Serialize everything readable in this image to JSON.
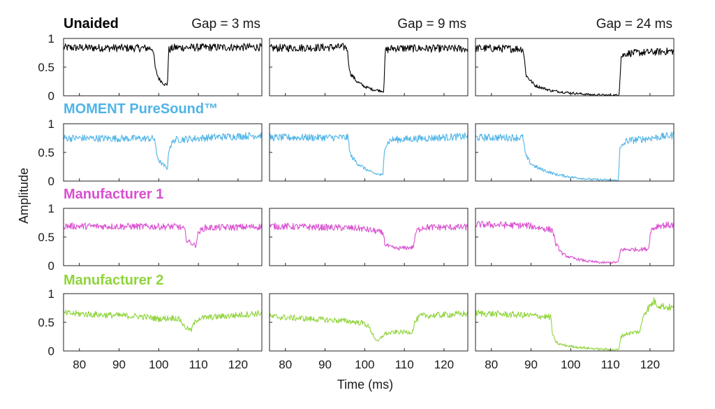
{
  "chart_data": {
    "type": "line",
    "xlabel": "Time (ms)",
    "ylabel": "Amplitude",
    "xlim": [
      76,
      126
    ],
    "ylim": [
      0,
      1
    ],
    "x_ticks": [
      80,
      90,
      100,
      110,
      120
    ],
    "y_ticks": [
      0,
      0.5,
      1
    ],
    "y_tick_labels": [
      "0",
      "0.5",
      "1"
    ],
    "columns": [
      {
        "gap_label": "Gap = 3 ms",
        "gap_ms": 3
      },
      {
        "gap_label": "Gap = 9 ms",
        "gap_ms": 9
      },
      {
        "gap_label": "Gap = 24 ms",
        "gap_ms": 24
      }
    ],
    "rows": [
      {
        "name": "Unaided",
        "color": "#000000",
        "series": [
          {
            "points": [
              [
                76,
                0.84
              ],
              [
                98.5,
                0.83
              ],
              [
                99.2,
                0.45
              ],
              [
                100,
                0.3
              ],
              [
                101.5,
                0.2
              ],
              [
                102.2,
                0.19
              ],
              [
                102.5,
                0.8
              ],
              [
                104,
                0.84
              ],
              [
                126,
                0.85
              ]
            ]
          },
          {
            "points": [
              [
                76,
                0.83
              ],
              [
                95.5,
                0.85
              ],
              [
                96.3,
                0.4
              ],
              [
                98,
                0.25
              ],
              [
                100,
                0.16
              ],
              [
                102,
                0.11
              ],
              [
                104.8,
                0.08
              ],
              [
                105.2,
                0.79
              ],
              [
                107,
                0.83
              ],
              [
                126,
                0.82
              ]
            ]
          },
          {
            "points": [
              [
                76,
                0.83
              ],
              [
                88,
                0.82
              ],
              [
                88.8,
                0.35
              ],
              [
                91,
                0.18
              ],
              [
                95,
                0.09
              ],
              [
                100,
                0.05
              ],
              [
                105,
                0.02
              ],
              [
                109,
                0.01
              ],
              [
                112.2,
                0.01
              ],
              [
                112.7,
                0.68
              ],
              [
                114,
                0.74
              ],
              [
                126,
                0.78
              ]
            ]
          }
        ]
      },
      {
        "name": "MOMENT PureSound™",
        "color": "#4fb4e6",
        "series": [
          {
            "points": [
              [
                76,
                0.75
              ],
              [
                99,
                0.74
              ],
              [
                99.4,
                0.48
              ],
              [
                100.2,
                0.34
              ],
              [
                101.5,
                0.26
              ],
              [
                102.2,
                0.22
              ],
              [
                102.6,
                0.58
              ],
              [
                104,
                0.72
              ],
              [
                115,
                0.77
              ],
              [
                126,
                0.8
              ]
            ]
          },
          {
            "points": [
              [
                76,
                0.76
              ],
              [
                95.8,
                0.76
              ],
              [
                96.4,
                0.45
              ],
              [
                98,
                0.32
              ],
              [
                100,
                0.22
              ],
              [
                102,
                0.14
              ],
              [
                104.6,
                0.1
              ],
              [
                105,
                0.6
              ],
              [
                106.5,
                0.72
              ],
              [
                126,
                0.78
              ]
            ]
          },
          {
            "points": [
              [
                76,
                0.76
              ],
              [
                88,
                0.76
              ],
              [
                88.6,
                0.45
              ],
              [
                90,
                0.3
              ],
              [
                92,
                0.22
              ],
              [
                96,
                0.12
              ],
              [
                100,
                0.07
              ],
              [
                105,
                0.03
              ],
              [
                112,
                0.01
              ],
              [
                112.4,
                0.55
              ],
              [
                114,
                0.7
              ],
              [
                126,
                0.8
              ]
            ]
          }
        ]
      },
      {
        "name": "Manufacturer 1",
        "color": "#d94fd0",
        "series": [
          {
            "points": [
              [
                76,
                0.69
              ],
              [
                105,
                0.68
              ],
              [
                106.5,
                0.63
              ],
              [
                107,
                0.45
              ],
              [
                108,
                0.4
              ],
              [
                109.3,
                0.35
              ],
              [
                110,
                0.58
              ],
              [
                111.5,
                0.66
              ],
              [
                126,
                0.68
              ]
            ]
          },
          {
            "points": [
              [
                76,
                0.69
              ],
              [
                95,
                0.66
              ],
              [
                99,
                0.65
              ],
              [
                103,
                0.6
              ],
              [
                104.8,
                0.56
              ],
              [
                105,
                0.38
              ],
              [
                106.5,
                0.32
              ],
              [
                108,
                0.3
              ],
              [
                112.2,
                0.32
              ],
              [
                113,
                0.6
              ],
              [
                114.5,
                0.67
              ],
              [
                126,
                0.67
              ]
            ]
          },
          {
            "points": [
              [
                76,
                0.72
              ],
              [
                89,
                0.7
              ],
              [
                95.5,
                0.62
              ],
              [
                96.2,
                0.38
              ],
              [
                98,
                0.2
              ],
              [
                100,
                0.14
              ],
              [
                104,
                0.08
              ],
              [
                108,
                0.05
              ],
              [
                112,
                0.06
              ],
              [
                112.6,
                0.28
              ],
              [
                114,
                0.28
              ],
              [
                119.6,
                0.29
              ],
              [
                120.2,
                0.62
              ],
              [
                122,
                0.7
              ],
              [
                126,
                0.71
              ]
            ]
          }
        ]
      },
      {
        "name": "Manufacturer 2",
        "color": "#8fd43a",
        "series": [
          {
            "points": [
              [
                76,
                0.66
              ],
              [
                96,
                0.6
              ],
              [
                100,
                0.56
              ],
              [
                104,
                0.58
              ],
              [
                105.5,
                0.54
              ],
              [
                106.5,
                0.42
              ],
              [
                108.2,
                0.36
              ],
              [
                108.8,
                0.47
              ],
              [
                110,
                0.57
              ],
              [
                126,
                0.66
              ]
            ]
          },
          {
            "points": [
              [
                76,
                0.6
              ],
              [
                96,
                0.52
              ],
              [
                100,
                0.48
              ],
              [
                101,
                0.42
              ],
              [
                102,
                0.3
              ],
              [
                103.2,
                0.15
              ],
              [
                104,
                0.22
              ],
              [
                105,
                0.3
              ],
              [
                108,
                0.33
              ],
              [
                112,
                0.33
              ],
              [
                112.6,
                0.5
              ],
              [
                114,
                0.61
              ],
              [
                126,
                0.65
              ]
            ]
          },
          {
            "points": [
              [
                76,
                0.66
              ],
              [
                90,
                0.62
              ],
              [
                95,
                0.59
              ],
              [
                95.4,
                0.3
              ],
              [
                96,
                0.18
              ],
              [
                97,
                0.12
              ],
              [
                100,
                0.08
              ],
              [
                104,
                0.05
              ],
              [
                108,
                0.03
              ],
              [
                112.2,
                0.02
              ],
              [
                112.6,
                0.25
              ],
              [
                114,
                0.3
              ],
              [
                117.5,
                0.34
              ],
              [
                118.4,
                0.65
              ],
              [
                120,
                0.78
              ],
              [
                121,
                0.87
              ],
              [
                122,
                0.8
              ],
              [
                124,
                0.77
              ],
              [
                126,
                0.75
              ]
            ]
          }
        ]
      }
    ]
  }
}
